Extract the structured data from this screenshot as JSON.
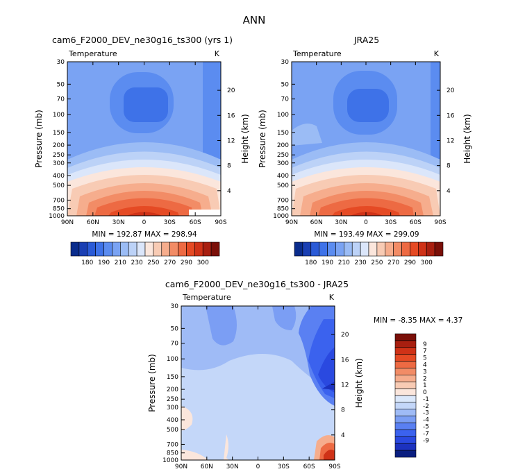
{
  "figure_title": "ANN",
  "colors": {
    "levels": [
      "#0a2c8c",
      "#1a3fb3",
      "#2a5ad6",
      "#3e72e8",
      "#5b8cf0",
      "#7aa3f3",
      "#9bbcf5",
      "#bcd2f7",
      "#dbe6fa",
      "#fbe6dc",
      "#f8cbb4",
      "#f6ad8d",
      "#f28c66",
      "#ed6a43",
      "#e54a24",
      "#cf3217",
      "#a81f10",
      "#7a0f08"
    ],
    "diff_levels": [
      "#0a1e80",
      "#1c32bf",
      "#2a49e0",
      "#3b62ee",
      "#5a80f2",
      "#7b9ef4",
      "#9fbbf6",
      "#c4d7f9",
      "#dbe8fb",
      "#fbe6dc",
      "#f8cbb4",
      "#f6ad8d",
      "#f28c66",
      "#ed6a43",
      "#e54a24",
      "#cf3217",
      "#a81f10",
      "#7a0f08"
    ]
  },
  "chart_data": [
    {
      "type": "heatmap",
      "title": "cam6_F2000_DEV_ne30g16_ts300 (yrs 1)",
      "subtitle": "Temperature",
      "units": "K",
      "ylabel": "Pressure (mb)",
      "ylabel_right": "Height (km)",
      "x_ticks": [
        "90N",
        "60N",
        "30N",
        "0",
        "30S",
        "60S",
        "90S"
      ],
      "y_ticks": [
        "30",
        "50",
        "70",
        "100",
        "150",
        "200",
        "250",
        "300",
        "400",
        "500",
        "700",
        "850",
        "1000"
      ],
      "y_ticks_right": [
        "20",
        "16",
        "12",
        "8",
        "4"
      ],
      "stats": "MIN = 192.87   MAX = 298.94",
      "colorbar_labels": [
        "180",
        "190",
        "210",
        "230",
        "250",
        "270",
        "290",
        "300"
      ]
    },
    {
      "type": "heatmap",
      "title": "JRA25",
      "subtitle": "Temperature",
      "units": "K",
      "ylabel": "Pressure (mb)",
      "ylabel_right": "Height (km)",
      "x_ticks": [
        "90N",
        "60N",
        "30N",
        "0",
        "30S",
        "60S",
        "90S"
      ],
      "y_ticks": [
        "30",
        "50",
        "70",
        "100",
        "150",
        "200",
        "250",
        "300",
        "400",
        "500",
        "700",
        "850",
        "1000"
      ],
      "y_ticks_right": [
        "20",
        "16",
        "12",
        "8",
        "4"
      ],
      "stats": "MIN = 193.49   MAX = 299.09",
      "colorbar_labels": [
        "180",
        "190",
        "210",
        "230",
        "250",
        "270",
        "290",
        "300"
      ]
    },
    {
      "type": "heatmap",
      "title": "cam6_F2000_DEV_ne30g16_ts300 - JRA25",
      "subtitle": "Temperature",
      "units": "K",
      "ylabel": "Pressure (mb)",
      "ylabel_right": "Height (km)",
      "x_ticks": [
        "90N",
        "60N",
        "30N",
        "0",
        "30S",
        "60S",
        "90S"
      ],
      "y_ticks": [
        "30",
        "50",
        "70",
        "100",
        "150",
        "200",
        "250",
        "300",
        "400",
        "500",
        "700",
        "850",
        "1000"
      ],
      "y_ticks_right": [
        "20",
        "16",
        "12",
        "8",
        "4"
      ],
      "stats": "MIN =   -8.35   MAX =    4.37",
      "colorbar_labels": [
        "9",
        "7",
        "5",
        "4",
        "3",
        "2",
        "1",
        "0",
        "-1",
        "-2",
        "-3",
        "-4",
        "-5",
        "-7",
        "-9"
      ]
    }
  ]
}
